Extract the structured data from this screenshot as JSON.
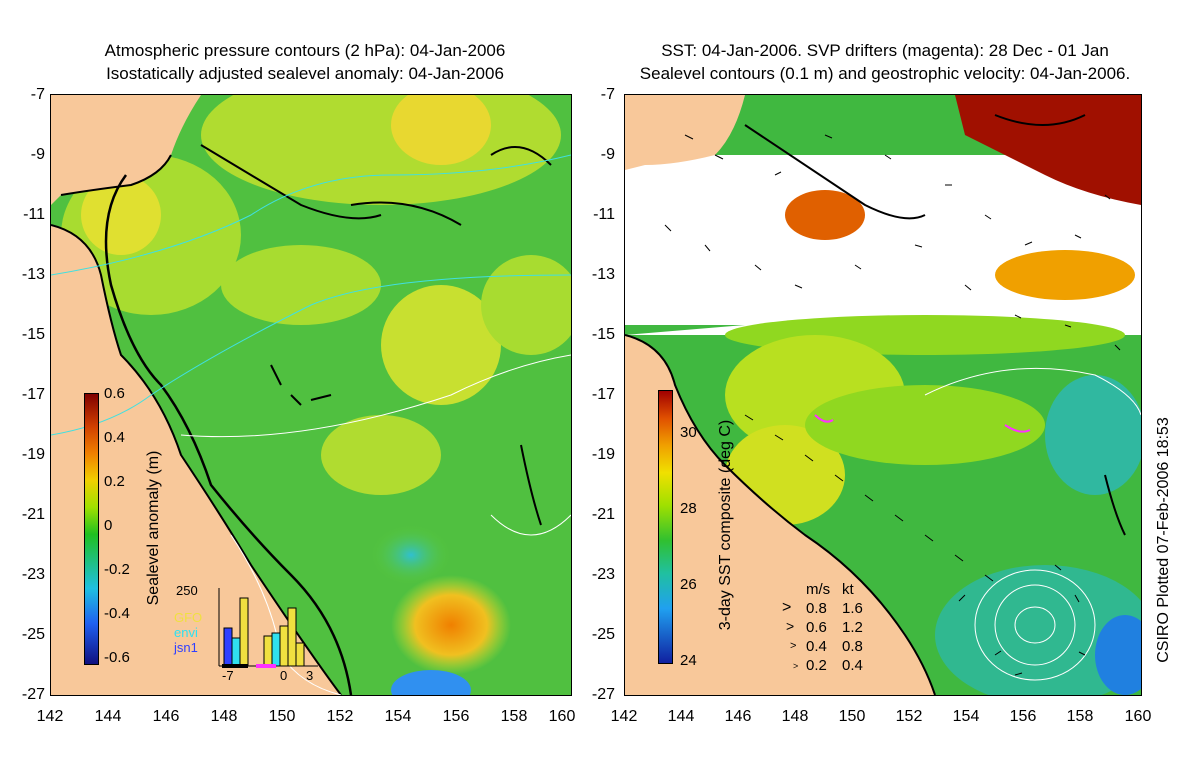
{
  "left_panel": {
    "title_line1": "Atmospheric pressure contours (2 hPa): 04-Jan-2006",
    "title_line2": "Isostatically adjusted sealevel anomaly: 04-Jan-2006",
    "colorbar": {
      "label": "Sealevel anomaly (m)",
      "ticks": [
        "0.6",
        "0.4",
        "0.2",
        "0",
        "-0.2",
        "-0.4",
        "-0.6"
      ]
    },
    "histogram": {
      "y_max_label": "250",
      "x_labels": [
        "-7",
        "0",
        "3"
      ],
      "legend": [
        {
          "name": "GFO",
          "color": "#f0e040"
        },
        {
          "name": "envi",
          "color": "#30e0f0"
        },
        {
          "name": "jsn1",
          "color": "#3040ff"
        }
      ]
    }
  },
  "right_panel": {
    "title_line1": "SST: 04-Jan-2006. SVP drifters (magenta): 28 Dec - 01 Jan",
    "title_line2": "Sealevel contours (0.1 m) and geostrophic velocity: 04-Jan-2006.",
    "colorbar": {
      "label": "3-day SST composite (deg C)",
      "ticks": [
        "30",
        "28",
        "26",
        "24"
      ]
    },
    "velocity_legend": {
      "headers": [
        "m/s",
        "kt"
      ],
      "rows": [
        {
          "ms": "0.8",
          "kt": "1.6"
        },
        {
          "ms": "0.6",
          "kt": "1.2"
        },
        {
          "ms": "0.4",
          "kt": "0.8"
        },
        {
          "ms": "0.2",
          "kt": "0.4"
        }
      ]
    }
  },
  "axes": {
    "lat_ticks": [
      "-7",
      "-9",
      "-11",
      "-13",
      "-15",
      "-17",
      "-19",
      "-21",
      "-23",
      "-25",
      "-27"
    ],
    "lon_ticks": [
      "142",
      "144",
      "146",
      "148",
      "150",
      "152",
      "154",
      "156",
      "158",
      "160"
    ]
  },
  "footer_credit": "CSIRO Plotted 07-Feb-2006 18:53",
  "colors": {
    "land": "#f8c89a",
    "ocean_green": "#60cc30",
    "ocean_yellow": "#c8e030",
    "coastline": "#000000",
    "missing_sst": "#ffffff",
    "warm_sst": "#a01000"
  }
}
